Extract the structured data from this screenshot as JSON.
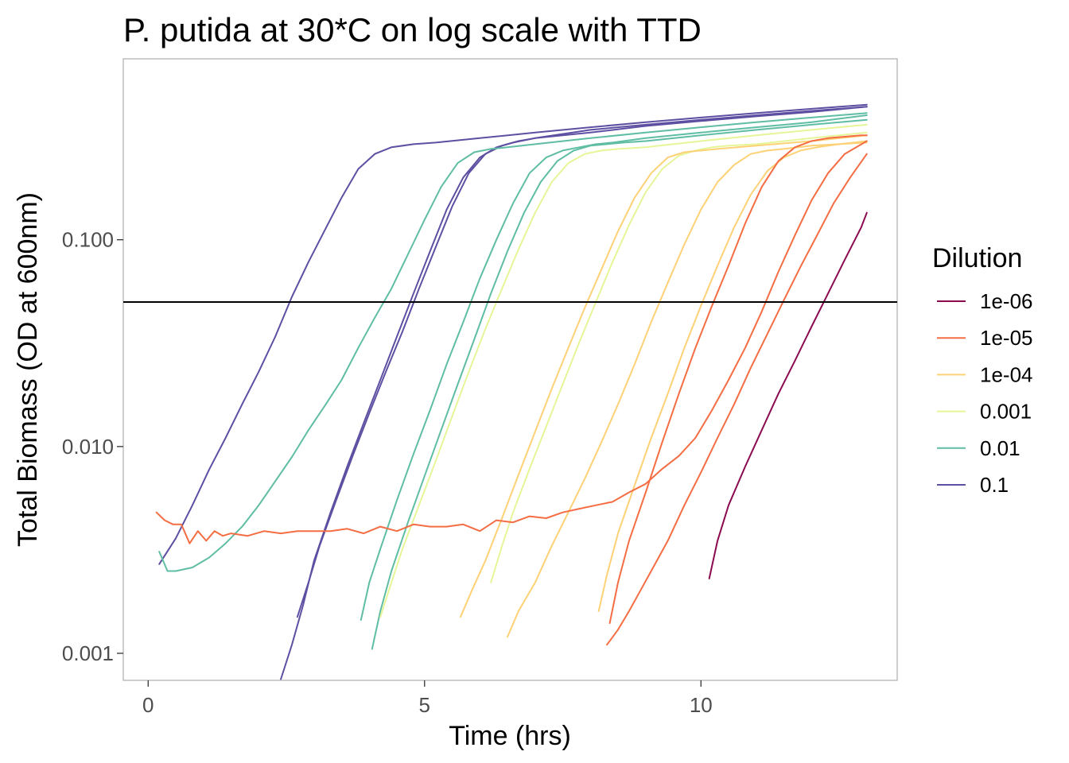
{
  "chart_data": {
    "type": "line",
    "title": "P. putida at 30*C on log scale with TTD",
    "xlabel": "Time (hrs)",
    "ylabel": "Total Biomass (OD at 600nm)",
    "x_ticks": [
      0,
      5,
      10
    ],
    "x_tick_labels": [
      "0",
      "5",
      "10"
    ],
    "xlim": [
      -0.45,
      13.55
    ],
    "y_scale": "log",
    "y_ticks": [
      0.001,
      0.01,
      0.1
    ],
    "y_tick_labels": [
      "0.001",
      "0.010",
      "0.100"
    ],
    "ylim": [
      0.00074,
      0.75
    ],
    "grid": false,
    "threshold_line": 0.05,
    "legend": {
      "title": "Dilution",
      "position": "right",
      "entries": [
        {
          "label": "1e-06",
          "color": "#8B0A50"
        },
        {
          "label": "1e-05",
          "color": "#F46D43"
        },
        {
          "label": "1e-04",
          "color": "#FDD176"
        },
        {
          "label": "0.001",
          "color": "#E6F598"
        },
        {
          "label": "0.01",
          "color": "#5FBDA4"
        },
        {
          "label": "0.1",
          "color": "#5E4FA2"
        }
      ]
    },
    "series": [
      {
        "name": "0.1",
        "color": "#5E4FA2",
        "x": [
          0.2,
          0.5,
          0.8,
          1.1,
          1.4,
          1.7,
          2.0,
          2.3,
          2.6,
          2.9,
          3.2,
          3.5,
          3.8,
          4.1,
          4.4,
          4.8,
          5.2,
          6.0,
          7.0,
          8.0,
          9.0,
          10.0,
          11.0,
          12.0,
          13.0
        ],
        "y": [
          0.0027,
          0.0036,
          0.0052,
          0.0077,
          0.011,
          0.016,
          0.023,
          0.034,
          0.053,
          0.078,
          0.112,
          0.16,
          0.22,
          0.26,
          0.28,
          0.29,
          0.295,
          0.31,
          0.33,
          0.35,
          0.37,
          0.39,
          0.41,
          0.43,
          0.45
        ]
      },
      {
        "name": "0.1",
        "color": "#5E4FA2",
        "x": [
          2.4,
          2.6,
          2.8,
          3.0,
          3.3,
          3.6,
          3.9,
          4.2,
          4.5,
          4.8,
          5.1,
          5.4,
          5.7,
          6.0,
          6.3,
          6.6,
          7.0,
          8.0,
          9.0,
          10.0,
          11.0,
          12.0,
          13.0
        ],
        "y": [
          0.00075,
          0.0011,
          0.0017,
          0.0028,
          0.0048,
          0.008,
          0.013,
          0.021,
          0.034,
          0.055,
          0.088,
          0.14,
          0.2,
          0.25,
          0.28,
          0.295,
          0.31,
          0.34,
          0.36,
          0.38,
          0.4,
          0.42,
          0.44
        ]
      },
      {
        "name": "0.1",
        "color": "#5E4FA2",
        "x": [
          2.7,
          2.9,
          3.1,
          3.4,
          3.7,
          4.0,
          4.3,
          4.6,
          4.9,
          5.2,
          5.5,
          5.8,
          6.1,
          6.4,
          6.7,
          7.0,
          8.0,
          9.0,
          10.0,
          11.0,
          12.0,
          13.0
        ],
        "y": [
          0.0015,
          0.0022,
          0.0033,
          0.0055,
          0.009,
          0.0145,
          0.023,
          0.036,
          0.058,
          0.092,
          0.145,
          0.21,
          0.26,
          0.285,
          0.3,
          0.31,
          0.33,
          0.355,
          0.375,
          0.395,
          0.415,
          0.44
        ]
      },
      {
        "name": "0.01",
        "color": "#5FBDA4",
        "x": [
          0.2,
          0.35,
          0.5,
          0.8,
          1.1,
          1.4,
          1.7,
          2.0,
          2.3,
          2.6,
          2.9,
          3.2,
          3.5,
          3.8,
          4.1,
          4.4,
          4.7,
          5.0,
          5.3,
          5.6,
          5.9,
          6.2,
          6.5,
          7.0,
          8.0,
          9.0,
          10.0,
          11.0,
          12.0,
          13.0
        ],
        "y": [
          0.0031,
          0.0025,
          0.0025,
          0.0026,
          0.0029,
          0.0034,
          0.0041,
          0.0052,
          0.0068,
          0.0089,
          0.012,
          0.0158,
          0.021,
          0.03,
          0.042,
          0.058,
          0.085,
          0.125,
          0.18,
          0.235,
          0.265,
          0.275,
          0.28,
          0.29,
          0.31,
          0.33,
          0.35,
          0.37,
          0.39,
          0.41
        ]
      },
      {
        "name": "0.01",
        "color": "#5FBDA4",
        "x": [
          3.85,
          4.0,
          4.2,
          4.5,
          4.8,
          5.1,
          5.4,
          5.7,
          6.0,
          6.3,
          6.6,
          6.9,
          7.2,
          7.5,
          7.8,
          8.1,
          8.4,
          9.0,
          10.0,
          11.0,
          12.0,
          13.0
        ],
        "y": [
          0.00145,
          0.0022,
          0.0032,
          0.0055,
          0.0092,
          0.015,
          0.025,
          0.04,
          0.065,
          0.1,
          0.15,
          0.21,
          0.25,
          0.27,
          0.28,
          0.29,
          0.295,
          0.31,
          0.33,
          0.35,
          0.37,
          0.4
        ]
      },
      {
        "name": "0.01",
        "color": "#5FBDA4",
        "x": [
          4.05,
          4.2,
          4.4,
          4.7,
          5.0,
          5.3,
          5.6,
          5.9,
          6.2,
          6.5,
          6.8,
          7.1,
          7.4,
          7.7,
          8.0,
          8.3,
          8.6,
          9.0,
          10.0,
          11.0,
          12.0,
          13.0
        ],
        "y": [
          0.00105,
          0.0016,
          0.0025,
          0.0043,
          0.0072,
          0.012,
          0.02,
          0.033,
          0.055,
          0.088,
          0.135,
          0.19,
          0.24,
          0.27,
          0.285,
          0.29,
          0.295,
          0.3,
          0.32,
          0.34,
          0.36,
          0.38
        ]
      },
      {
        "name": "0.001",
        "color": "#E6F598",
        "x": [
          4.2,
          4.4,
          4.6,
          4.9,
          5.2,
          5.5,
          5.8,
          6.1,
          6.4,
          6.7,
          7.0,
          7.3,
          7.6,
          7.9,
          8.2,
          8.5,
          9.0,
          10.0,
          11.0,
          12.0,
          13.0
        ],
        "y": [
          0.0015,
          0.0022,
          0.0032,
          0.0052,
          0.0085,
          0.014,
          0.023,
          0.037,
          0.058,
          0.09,
          0.135,
          0.19,
          0.235,
          0.26,
          0.27,
          0.275,
          0.28,
          0.3,
          0.32,
          0.34,
          0.36
        ]
      },
      {
        "name": "0.001",
        "color": "#E6F598",
        "x": [
          6.2,
          6.4,
          6.6,
          6.9,
          7.2,
          7.5,
          7.8,
          8.1,
          8.4,
          8.7,
          9.0,
          9.3,
          9.6,
          9.9,
          10.2,
          10.5,
          11.0,
          12.0,
          13.0
        ],
        "y": [
          0.0022,
          0.0033,
          0.0048,
          0.0078,
          0.0125,
          0.02,
          0.032,
          0.05,
          0.078,
          0.118,
          0.17,
          0.22,
          0.255,
          0.27,
          0.28,
          0.285,
          0.29,
          0.31,
          0.33
        ]
      },
      {
        "name": "1e-04",
        "color": "#FDD176",
        "x": [
          5.65,
          5.85,
          6.1,
          6.4,
          6.7,
          7.0,
          7.3,
          7.6,
          7.9,
          8.2,
          8.5,
          8.8,
          9.1,
          9.4,
          9.7,
          10.0,
          10.3,
          11.0,
          12.0,
          13.0
        ],
        "y": [
          0.0015,
          0.002,
          0.0028,
          0.0045,
          0.0073,
          0.0118,
          0.019,
          0.03,
          0.047,
          0.072,
          0.11,
          0.16,
          0.21,
          0.25,
          0.265,
          0.27,
          0.275,
          0.285,
          0.3,
          0.32
        ]
      },
      {
        "name": "1e-04",
        "color": "#FDD176",
        "x": [
          6.5,
          6.7,
          7.0,
          7.3,
          7.6,
          7.9,
          8.2,
          8.5,
          8.8,
          9.1,
          9.4,
          9.7,
          10.0,
          10.3,
          10.6,
          10.9,
          11.2,
          11.5,
          12.0,
          13.0
        ],
        "y": [
          0.0012,
          0.0016,
          0.0022,
          0.0033,
          0.0048,
          0.007,
          0.0105,
          0.016,
          0.025,
          0.04,
          0.062,
          0.095,
          0.14,
          0.19,
          0.23,
          0.26,
          0.27,
          0.275,
          0.285,
          0.295
        ]
      },
      {
        "name": "1e-04",
        "color": "#FDD176",
        "x": [
          8.15,
          8.3,
          8.5,
          8.8,
          9.1,
          9.4,
          9.7,
          10.0,
          10.3,
          10.6,
          10.9,
          11.2,
          11.5,
          11.8,
          12.1,
          12.5,
          13.0
        ],
        "y": [
          0.0016,
          0.0024,
          0.0038,
          0.0065,
          0.011,
          0.018,
          0.03,
          0.048,
          0.075,
          0.115,
          0.165,
          0.215,
          0.25,
          0.27,
          0.28,
          0.29,
          0.3
        ]
      },
      {
        "name": "1e-05",
        "color": "#F46D43",
        "x": [
          0.15,
          0.3,
          0.45,
          0.6,
          0.75,
          0.9,
          1.05,
          1.2,
          1.35,
          1.5,
          1.8,
          2.1,
          2.4,
          2.7,
          3.0,
          3.3,
          3.6,
          3.9,
          4.2,
          4.5,
          4.8,
          5.1,
          5.4,
          5.7,
          6.0,
          6.3,
          6.6,
          6.9,
          7.2,
          7.5,
          7.8,
          8.1,
          8.4,
          8.7,
          9.0,
          9.3,
          9.6,
          9.9,
          10.2,
          10.5,
          10.8,
          11.1,
          11.4,
          11.7,
          12.0,
          12.3,
          12.6,
          13.0
        ],
        "y": [
          0.0048,
          0.0044,
          0.0042,
          0.0042,
          0.0034,
          0.0039,
          0.0035,
          0.0039,
          0.0037,
          0.0038,
          0.0037,
          0.0039,
          0.0038,
          0.0039,
          0.0039,
          0.0039,
          0.004,
          0.0038,
          0.0041,
          0.0039,
          0.0042,
          0.0041,
          0.0041,
          0.0042,
          0.0039,
          0.0044,
          0.0043,
          0.0046,
          0.0045,
          0.0048,
          0.005,
          0.0052,
          0.0054,
          0.006,
          0.0066,
          0.0078,
          0.009,
          0.011,
          0.015,
          0.021,
          0.03,
          0.045,
          0.07,
          0.105,
          0.155,
          0.21,
          0.26,
          0.3
        ]
      },
      {
        "name": "1e-05",
        "color": "#F46D43",
        "x": [
          8.35,
          8.5,
          8.7,
          9.0,
          9.3,
          9.6,
          9.9,
          10.2,
          10.5,
          10.8,
          11.1,
          11.4,
          11.7,
          12.0,
          12.3,
          12.6,
          12.9,
          13.0
        ],
        "y": [
          0.0014,
          0.0022,
          0.0035,
          0.006,
          0.0105,
          0.018,
          0.03,
          0.048,
          0.075,
          0.12,
          0.18,
          0.24,
          0.28,
          0.3,
          0.31,
          0.315,
          0.32,
          0.32
        ]
      },
      {
        "name": "1e-05",
        "color": "#F46D43",
        "x": [
          8.3,
          8.5,
          8.7,
          8.9,
          9.1,
          9.4,
          9.7,
          10.0,
          10.3,
          10.6,
          10.9,
          11.2,
          11.5,
          11.8,
          12.1,
          12.4,
          12.7,
          13.0
        ],
        "y": [
          0.0011,
          0.0013,
          0.0016,
          0.002,
          0.0025,
          0.0035,
          0.0052,
          0.0075,
          0.011,
          0.016,
          0.024,
          0.035,
          0.051,
          0.074,
          0.105,
          0.15,
          0.2,
          0.26
        ]
      },
      {
        "name": "1e-06",
        "color": "#8B0A50",
        "x": [
          10.15,
          10.3,
          10.5,
          10.8,
          11.1,
          11.4,
          11.7,
          12.0,
          12.3,
          12.6,
          12.9,
          13.0
        ],
        "y": [
          0.0023,
          0.0035,
          0.0052,
          0.008,
          0.012,
          0.018,
          0.026,
          0.038,
          0.055,
          0.08,
          0.115,
          0.135
        ]
      }
    ]
  }
}
